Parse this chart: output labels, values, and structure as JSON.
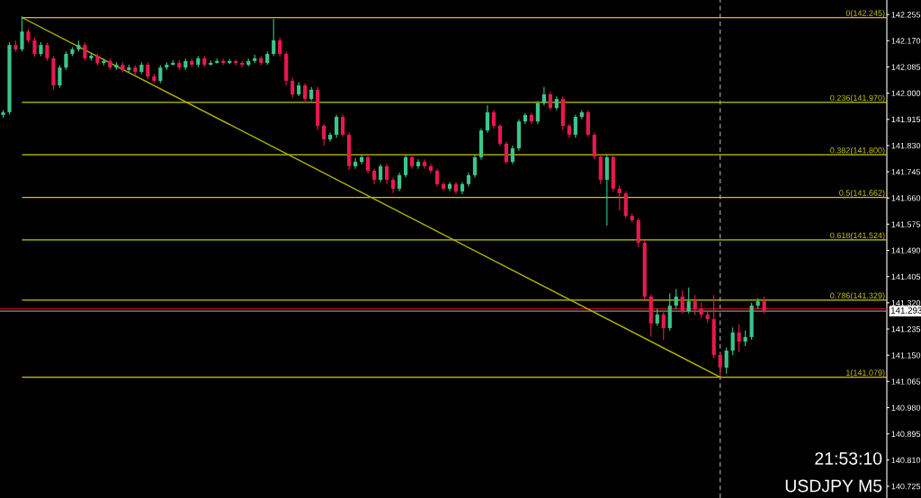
{
  "chart_data": {
    "type": "candlestick",
    "categories": [
      null,
      null,
      null,
      null,
      null,
      null,
      null,
      null,
      null,
      null,
      null,
      null,
      null,
      null,
      null,
      null,
      null,
      null,
      null,
      null,
      null,
      null,
      null,
      null,
      null,
      null,
      null,
      null,
      null,
      null,
      null,
      null,
      null,
      null,
      null,
      null,
      null,
      null,
      null,
      null,
      null,
      null,
      null,
      null,
      null,
      null,
      null,
      null,
      null,
      null,
      null,
      null,
      null,
      null,
      null,
      null,
      null,
      null,
      null,
      null,
      null,
      null,
      null,
      null,
      null,
      null,
      null,
      null,
      null,
      null,
      null,
      null,
      null,
      null,
      null,
      null,
      null,
      null,
      null,
      null,
      null,
      null,
      null,
      null,
      null,
      null,
      null,
      null,
      null,
      null,
      null,
      null,
      null,
      null,
      null,
      null,
      null,
      null,
      null,
      null,
      null,
      null,
      null,
      null,
      null,
      null,
      null,
      null,
      null,
      null,
      null,
      null,
      null,
      null,
      null,
      null,
      null,
      null,
      null,
      null,
      null,
      null,
      null,
      null,
      null,
      null,
      null,
      null,
      null,
      null,
      null,
      null,
      null,
      null,
      null,
      null,
      null,
      null,
      null,
      null,
      null
    ],
    "ohlc": [
      [
        141.929,
        141.945,
        141.92,
        141.938
      ],
      [
        141.938,
        142.165,
        141.93,
        142.156
      ],
      [
        142.156,
        142.17,
        142.135,
        142.142
      ],
      [
        142.142,
        142.249,
        142.135,
        142.2
      ],
      [
        142.2,
        142.208,
        142.163,
        142.171
      ],
      [
        142.171,
        142.18,
        142.118,
        142.127
      ],
      [
        142.127,
        142.165,
        142.12,
        142.156
      ],
      [
        142.156,
        142.164,
        142.105,
        142.113
      ],
      [
        142.113,
        142.12,
        142.011,
        142.025
      ],
      [
        142.025,
        142.09,
        142.018,
        142.083
      ],
      [
        142.083,
        142.135,
        142.075,
        142.127
      ],
      [
        142.127,
        142.15,
        142.12,
        142.142
      ],
      [
        142.142,
        142.17,
        142.135,
        142.156
      ],
      [
        142.156,
        142.164,
        142.105,
        142.113
      ],
      [
        142.113,
        142.13,
        142.105,
        142.121
      ],
      [
        142.121,
        142.128,
        142.09,
        142.098
      ],
      [
        142.098,
        142.112,
        142.09,
        142.104
      ],
      [
        142.104,
        142.112,
        142.075,
        142.083
      ],
      [
        142.083,
        142.1,
        142.075,
        142.092
      ],
      [
        142.092,
        142.1,
        142.067,
        142.075
      ],
      [
        142.075,
        142.092,
        142.067,
        142.083
      ],
      [
        142.083,
        142.09,
        142.06,
        142.069
      ],
      [
        142.069,
        142.1,
        142.062,
        142.092
      ],
      [
        142.092,
        142.1,
        142.046,
        142.054
      ],
      [
        142.054,
        142.062,
        142.032,
        142.04
      ],
      [
        142.04,
        142.09,
        142.032,
        142.083
      ],
      [
        142.083,
        142.1,
        142.075,
        142.092
      ],
      [
        142.092,
        142.106,
        142.09,
        142.098
      ],
      [
        142.098,
        142.106,
        142.075,
        142.083
      ],
      [
        142.083,
        142.112,
        142.075,
        142.104
      ],
      [
        142.104,
        142.112,
        142.084,
        142.092
      ],
      [
        142.092,
        142.12,
        142.084,
        142.113
      ],
      [
        142.113,
        142.12,
        142.084,
        142.092
      ],
      [
        142.092,
        142.106,
        142.09,
        142.098
      ],
      [
        142.098,
        142.112,
        142.096,
        142.104
      ],
      [
        142.104,
        142.11,
        142.092,
        142.098
      ],
      [
        142.098,
        142.11,
        142.094,
        142.104
      ],
      [
        142.104,
        142.108,
        142.09,
        142.098
      ],
      [
        142.098,
        142.104,
        142.084,
        142.092
      ],
      [
        142.092,
        142.112,
        142.086,
        142.104
      ],
      [
        142.104,
        142.124,
        142.098,
        142.113
      ],
      [
        142.113,
        142.12,
        142.09,
        142.098
      ],
      [
        142.098,
        142.135,
        142.092,
        142.127
      ],
      [
        142.127,
        142.241,
        142.12,
        142.171
      ],
      [
        142.171,
        142.18,
        142.118,
        142.127
      ],
      [
        142.127,
        142.135,
        142.025,
        142.04
      ],
      [
        142.04,
        142.05,
        141.985,
        141.996
      ],
      [
        141.996,
        142.035,
        141.99,
        142.025
      ],
      [
        142.025,
        142.032,
        141.97,
        141.981
      ],
      [
        141.981,
        142.02,
        141.975,
        142.011
      ],
      [
        142.011,
        142.02,
        141.88,
        141.894
      ],
      [
        141.894,
        141.9,
        141.83,
        141.85
      ],
      [
        141.85,
        141.872,
        141.843,
        141.865
      ],
      [
        141.865,
        141.93,
        141.855,
        141.923
      ],
      [
        141.923,
        141.93,
        141.858,
        141.865
      ],
      [
        141.865,
        141.872,
        141.75,
        141.763
      ],
      [
        141.763,
        141.79,
        141.755,
        141.777
      ],
      [
        141.777,
        141.8,
        141.77,
        141.792
      ],
      [
        141.792,
        141.8,
        141.74,
        141.748
      ],
      [
        141.748,
        141.755,
        141.705,
        141.719
      ],
      [
        141.719,
        141.77,
        141.712,
        141.763
      ],
      [
        141.763,
        141.77,
        141.705,
        141.719
      ],
      [
        141.719,
        141.726,
        141.676,
        141.69
      ],
      [
        141.69,
        141.742,
        141.682,
        141.734
      ],
      [
        141.734,
        141.8,
        141.726,
        141.792
      ],
      [
        141.792,
        141.8,
        141.755,
        141.763
      ],
      [
        141.763,
        141.785,
        141.755,
        141.777
      ],
      [
        141.777,
        141.785,
        141.755,
        141.763
      ],
      [
        141.763,
        141.77,
        141.74,
        141.748
      ],
      [
        141.748,
        141.755,
        141.697,
        141.705
      ],
      [
        141.705,
        141.712,
        141.682,
        141.69
      ],
      [
        141.69,
        141.712,
        141.682,
        141.705
      ],
      [
        141.705,
        141.712,
        141.672,
        141.681
      ],
      [
        141.681,
        141.712,
        141.672,
        141.705
      ],
      [
        141.705,
        141.742,
        141.697,
        141.734
      ],
      [
        141.734,
        141.8,
        141.726,
        141.792
      ],
      [
        141.792,
        141.886,
        141.784,
        141.879
      ],
      [
        141.879,
        141.96,
        141.871,
        141.938
      ],
      [
        141.938,
        141.945,
        141.886,
        141.894
      ],
      [
        141.894,
        141.9,
        141.828,
        141.836
      ],
      [
        141.836,
        141.843,
        141.77,
        141.777
      ],
      [
        141.777,
        141.83,
        141.77,
        141.821
      ],
      [
        141.821,
        141.915,
        141.813,
        141.908
      ],
      [
        141.908,
        141.936,
        141.9,
        141.929
      ],
      [
        141.929,
        141.936,
        141.9,
        141.908
      ],
      [
        141.908,
        141.975,
        141.9,
        141.967
      ],
      [
        141.967,
        142.02,
        141.96,
        141.996
      ],
      [
        141.996,
        142.004,
        141.945,
        141.952
      ],
      [
        141.952,
        141.989,
        141.945,
        141.981
      ],
      [
        141.981,
        141.989,
        141.88,
        141.894
      ],
      [
        141.894,
        141.9,
        141.855,
        141.865
      ],
      [
        141.865,
        141.93,
        141.855,
        141.923
      ],
      [
        141.923,
        141.945,
        141.915,
        141.938
      ],
      [
        141.938,
        141.945,
        141.858,
        141.865
      ],
      [
        141.865,
        141.872,
        141.786,
        141.794
      ],
      [
        141.794,
        141.8,
        141.705,
        141.719
      ],
      [
        141.719,
        141.8,
        141.57,
        141.792
      ],
      [
        141.792,
        141.8,
        141.68,
        141.69
      ],
      [
        141.69,
        141.7,
        141.62,
        141.675
      ],
      [
        141.675,
        141.682,
        141.594,
        141.602
      ],
      [
        141.602,
        141.61,
        141.58,
        141.588
      ],
      [
        141.588,
        141.595,
        141.5,
        141.515
      ],
      [
        141.515,
        141.522,
        141.33,
        141.34
      ],
      [
        141.34,
        141.347,
        141.21,
        141.253
      ],
      [
        141.253,
        141.3,
        141.245,
        141.282
      ],
      [
        141.282,
        141.29,
        141.2,
        141.238
      ],
      [
        141.238,
        141.35,
        141.23,
        141.311
      ],
      [
        141.311,
        141.365,
        141.3,
        141.34
      ],
      [
        141.34,
        141.36,
        141.285,
        141.293
      ],
      [
        141.293,
        141.37,
        141.285,
        141.325
      ],
      [
        141.325,
        141.345,
        141.28,
        141.3
      ],
      [
        141.3,
        141.32,
        141.27,
        141.282
      ],
      [
        141.282,
        141.29,
        141.255,
        141.267
      ],
      [
        141.267,
        141.345,
        141.14,
        141.151
      ],
      [
        141.151,
        141.16,
        141.084,
        141.11
      ],
      [
        141.11,
        141.175,
        141.09,
        141.165
      ],
      [
        141.165,
        141.24,
        141.15,
        141.224
      ],
      [
        141.224,
        141.25,
        141.16,
        141.194
      ],
      [
        141.194,
        141.23,
        141.18,
        141.209
      ],
      [
        141.209,
        141.32,
        141.2,
        141.311
      ],
      [
        141.311,
        141.335,
        141.3,
        141.325
      ],
      [
        141.325,
        141.34,
        141.285,
        141.293
      ],
      null,
      null,
      null,
      null,
      null,
      null,
      null,
      null,
      null,
      null,
      null,
      null,
      null,
      null,
      null,
      null,
      null,
      null,
      null
    ],
    "colors": [
      "#3cc58a",
      "#3cc58a",
      "#e8194d",
      "#3cc58a",
      "#e8194d",
      "#e8194d",
      "#3cc58a",
      "#e8194d",
      "#e8194d",
      "#3cc58a",
      "#3cc58a",
      "#3cc58a",
      "#3cc58a",
      "#e8194d",
      "#3cc58a",
      "#e8194d",
      "#3cc58a",
      "#e8194d",
      "#3cc58a",
      "#e8194d",
      "#3cc58a",
      "#e8194d",
      "#3cc58a",
      "#e8194d",
      "#e8194d",
      "#3cc58a",
      "#3cc58a",
      "#3cc58a",
      "#e8194d",
      "#3cc58a",
      "#e8194d",
      "#3cc58a",
      "#e8194d",
      "#3cc58a",
      "#3cc58a",
      "#e8194d",
      "#3cc58a",
      "#e8194d",
      "#e8194d",
      "#3cc58a",
      "#3cc58a",
      "#e8194d",
      "#3cc58a",
      "#3cc58a",
      "#e8194d",
      "#e8194d",
      "#e8194d",
      "#3cc58a",
      "#e8194d",
      "#3cc58a",
      "#e8194d",
      "#e8194d",
      "#3cc58a",
      "#3cc58a",
      "#e8194d",
      "#e8194d",
      "#3cc58a",
      "#3cc58a",
      "#e8194d",
      "#e8194d",
      "#3cc58a",
      "#e8194d",
      "#e8194d",
      "#3cc58a",
      "#3cc58a",
      "#e8194d",
      "#3cc58a",
      "#e8194d",
      "#e8194d",
      "#e8194d",
      "#e8194d",
      "#3cc58a",
      "#e8194d",
      "#3cc58a",
      "#3cc58a",
      "#3cc58a",
      "#3cc58a",
      "#3cc58a",
      "#e8194d",
      "#e8194d",
      "#e8194d",
      "#3cc58a",
      "#3cc58a",
      "#3cc58a",
      "#e8194d",
      "#3cc58a",
      "#3cc58a",
      "#e8194d",
      "#3cc58a",
      "#e8194d",
      "#e8194d",
      "#3cc58a",
      "#3cc58a",
      "#e8194d",
      "#e8194d",
      "#e8194d",
      "#3cc58a",
      "#e8194d",
      "#e8194d",
      "#e8194d",
      "#e8194d",
      "#e8194d",
      "#e8194d",
      "#e8194d",
      "#3cc58a",
      "#e8194d",
      "#3cc58a",
      "#3cc58a",
      "#e8194d",
      "#3cc58a",
      "#e8194d",
      "#e8194d",
      "#e8194d",
      "#e8194d",
      "#e8194d",
      "#3cc58a",
      "#3cc58a",
      "#e8194d",
      "#3cc58a",
      "#3cc58a",
      "#3cc58a",
      "#e8194d",
      null,
      null,
      null,
      null,
      null,
      null,
      null,
      null,
      null,
      null,
      null,
      null,
      null,
      null,
      null,
      null,
      null,
      null,
      null
    ],
    "series": [
      {
        "type": "line",
        "values": [
          null,
          null,
          null,
          142.245,
          null,
          null,
          null,
          null,
          null,
          null,
          null,
          null,
          null,
          null,
          null,
          null,
          null,
          null,
          null,
          null,
          null,
          null,
          null,
          null,
          null,
          null,
          null,
          null,
          null,
          null,
          null,
          null,
          null,
          null,
          null,
          null,
          null,
          null,
          null,
          null,
          null,
          null,
          null,
          null,
          null,
          null,
          null,
          null,
          null,
          null,
          null,
          null,
          null,
          null,
          null,
          null,
          null,
          null,
          null,
          null,
          null,
          null,
          null,
          null,
          null,
          null,
          null,
          null,
          null,
          null,
          null,
          null,
          null,
          null,
          null,
          null,
          null,
          null,
          null,
          null,
          null,
          null,
          null,
          null,
          null,
          null,
          null,
          null,
          null,
          null,
          null,
          null,
          null,
          null,
          null,
          null,
          null,
          null,
          null,
          null,
          null,
          null,
          null,
          null,
          null,
          null,
          null,
          null,
          null,
          null,
          null,
          null,
          null,
          null,
          141.079,
          null,
          null,
          null,
          null,
          null,
          null,
          null,
          null,
          null,
          null,
          null,
          null,
          null,
          null,
          null,
          null,
          null,
          null,
          null,
          null,
          null,
          null,
          null,
          null,
          null,
          null
        ],
        "color": "#b4b400"
      }
    ],
    "ylim": [
      140.687,
      142.302
    ],
    "yticks": [
      {
        "value": 142.255,
        "label": "142.255"
      },
      {
        "value": 142.17,
        "label": "142.170"
      },
      {
        "value": 142.085,
        "label": "142.085"
      },
      {
        "value": 142.0,
        "label": "142.000"
      },
      {
        "value": 141.915,
        "label": "141.915"
      },
      {
        "value": 141.83,
        "label": "141.830"
      },
      {
        "value": 141.745,
        "label": "141.745"
      },
      {
        "value": 141.66,
        "label": "141.660"
      },
      {
        "value": 141.575,
        "label": "141.575"
      },
      {
        "value": 141.49,
        "label": "141.490"
      },
      {
        "value": 141.405,
        "label": "141.405"
      },
      {
        "value": 141.32,
        "label": "141.320"
      },
      {
        "value": 141.235,
        "label": "141.235"
      },
      {
        "value": 141.15,
        "label": "141.150"
      },
      {
        "value": 141.065,
        "label": "141.065"
      },
      {
        "value": 140.98,
        "label": "140.980"
      },
      {
        "value": 140.895,
        "label": "140.895"
      },
      {
        "value": 140.81,
        "label": "140.810"
      },
      {
        "value": 140.725,
        "label": "140.725"
      }
    ],
    "tick_labels": "y",
    "grid": false,
    "ref_lines": [
      {
        "axis": "y",
        "value": 142.245,
        "label": "0(142.245)",
        "color": "#c8c800",
        "line_style": "solid"
      },
      {
        "axis": "y",
        "value": 141.97,
        "label": "0.236(141.970)",
        "color": "#c8c800",
        "line_style": "solid"
      },
      {
        "axis": "y",
        "value": 141.8,
        "label": "0.382(141.800)",
        "color": "#c8c800",
        "line_style": "solid"
      },
      {
        "axis": "y",
        "value": 141.662,
        "label": "0.5(141.662)",
        "color": "#c8c800",
        "line_style": "solid"
      },
      {
        "axis": "y",
        "value": 141.524,
        "label": "0.618(141.524)",
        "color": "#c8c800",
        "line_style": "solid"
      },
      {
        "axis": "y",
        "value": 141.329,
        "label": "0.786(141.329)",
        "color": "#c8c800",
        "line_style": "solid"
      },
      {
        "axis": "y",
        "value": 141.079,
        "label": "1(141.079)",
        "color": "#c8c800",
        "line_style": "solid"
      },
      {
        "axis": "y",
        "value": 141.3,
        "color": "#c01010",
        "line_style": "solid"
      },
      {
        "axis": "y",
        "value": 141.293,
        "label": "141.293",
        "color": "#8a8a8a",
        "line_style": "solid"
      }
    ],
    "annotations": [
      "21:53:10",
      "USDJPY M5"
    ]
  }
}
